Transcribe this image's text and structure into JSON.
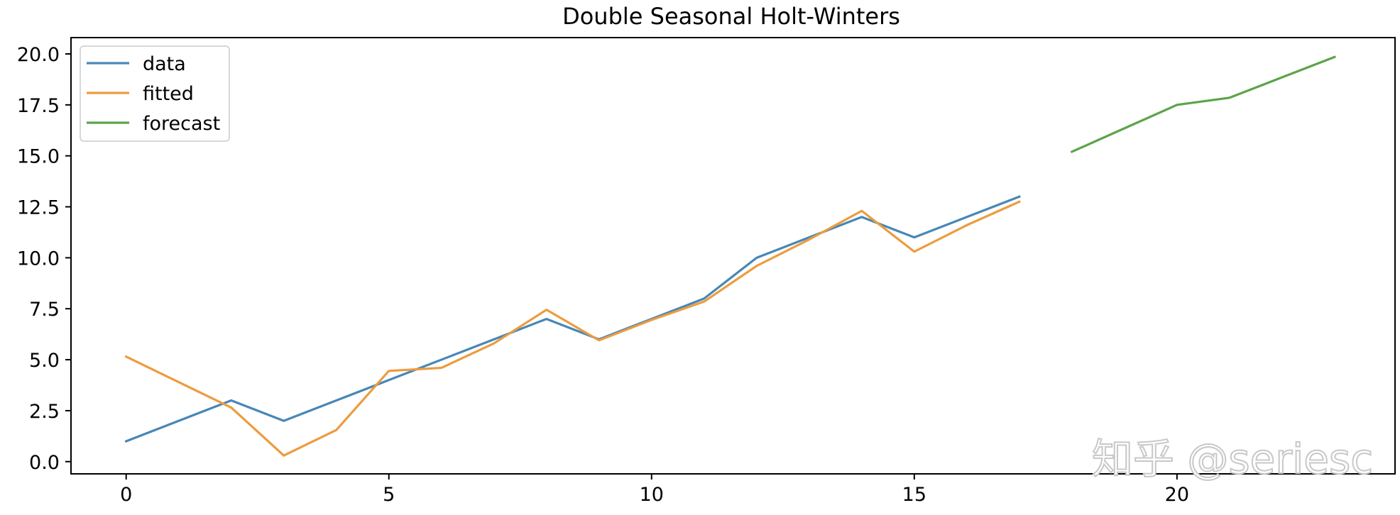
{
  "chart_data": {
    "type": "line",
    "title": "Double Seasonal Holt-Winters",
    "xlabel": "",
    "ylabel": "",
    "xlim": [
      -1.05,
      24.15
    ],
    "ylim": [
      -0.6,
      20.8
    ],
    "xticks": [
      0,
      5,
      10,
      15,
      20
    ],
    "xtick_labels": [
      "0",
      "5",
      "10",
      "15",
      "20"
    ],
    "yticks": [
      0,
      2.5,
      5,
      7.5,
      10,
      12.5,
      15,
      17.5,
      20
    ],
    "ytick_labels": [
      "0.0",
      "2.5",
      "5.0",
      "7.5",
      "10.0",
      "12.5",
      "15.0",
      "17.5",
      "20.0"
    ],
    "grid": false,
    "legend_position": "upper-left",
    "series": [
      {
        "name": "data",
        "color": "#4787b7",
        "x": [
          0,
          1,
          2,
          3,
          4,
          5,
          6,
          7,
          8,
          9,
          10,
          11,
          12,
          13,
          14,
          15,
          16,
          17
        ],
        "y": [
          1,
          2,
          3,
          2,
          3,
          4,
          5,
          6,
          7,
          6,
          7,
          8,
          10,
          11,
          12,
          11,
          12,
          13
        ]
      },
      {
        "name": "fitted",
        "color": "#ec9c3f",
        "x": [
          0,
          1,
          2,
          3,
          4,
          5,
          6,
          7,
          8,
          9,
          10,
          11,
          12,
          13,
          14,
          15,
          16,
          17
        ],
        "y": [
          5.15,
          3.9,
          2.65,
          0.3,
          1.55,
          4.45,
          4.6,
          5.8,
          7.45,
          5.95,
          6.95,
          7.85,
          9.6,
          10.9,
          12.3,
          10.3,
          11.6,
          12.75
        ]
      },
      {
        "name": "forecast",
        "color": "#5ba449",
        "x": [
          18,
          19,
          20,
          21,
          22,
          23
        ],
        "y": [
          15.2,
          16.35,
          17.5,
          17.85,
          18.85,
          19.85
        ]
      }
    ]
  },
  "watermark": "知乎 @seriesc"
}
